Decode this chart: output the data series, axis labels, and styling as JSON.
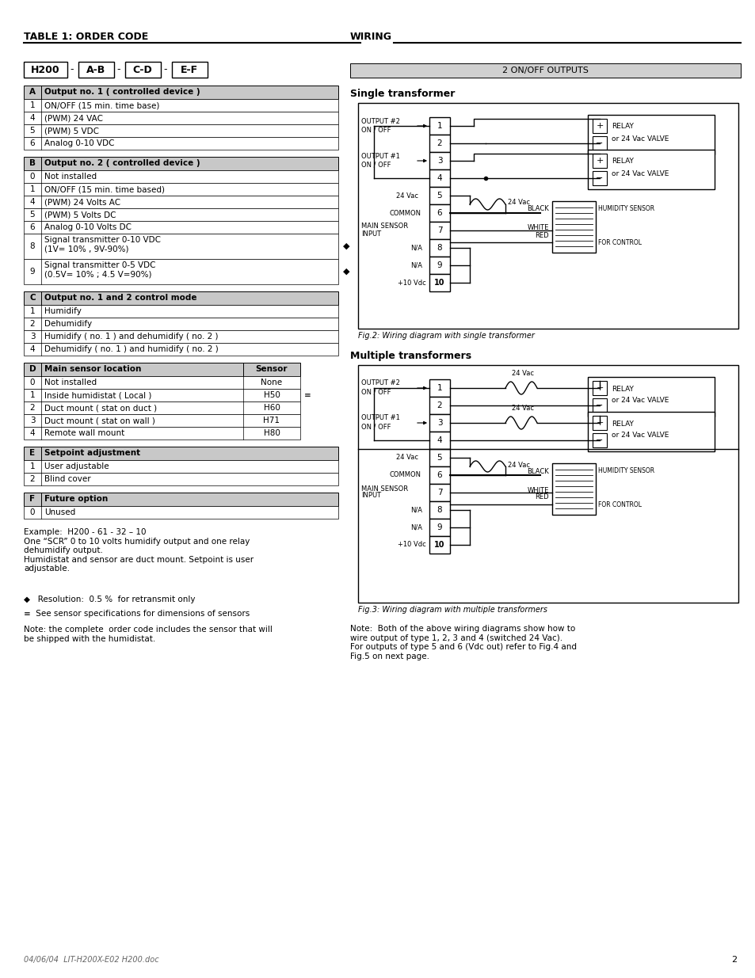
{
  "page_bg": "#ffffff",
  "title_left": "TABLE 1: ORDER CODE",
  "title_right": "WIRING",
  "order_code_boxes": [
    "H200",
    "A-B",
    "C-D",
    "E-F"
  ],
  "table_A_header": [
    "A",
    "Output no. 1 ( controlled device )"
  ],
  "table_A_rows": [
    [
      "1",
      "ON/OFF (15 min. time base)"
    ],
    [
      "4",
      "(PWM) 24 VAC"
    ],
    [
      "5",
      "(PWM) 5 VDC"
    ],
    [
      "6",
      "Analog 0-10 VDC"
    ]
  ],
  "table_B_header": [
    "B",
    "Output no. 2 ( controlled device )"
  ],
  "table_B_rows": [
    [
      "0",
      "Not installed"
    ],
    [
      "1",
      "ON/OFF (15 min. time based)"
    ],
    [
      "4",
      "(PWM) 24 Volts AC"
    ],
    [
      "5",
      "(PWM) 5 Volts DC"
    ],
    [
      "6",
      "Analog 0-10 Volts DC"
    ],
    [
      "8",
      "Signal transmitter 0-10 VDC\n(1V= 10% , 9V-90%)"
    ],
    [
      "9",
      "Signal transmitter 0-5 VDC\n(0.5V= 10% ; 4.5 V=90%)"
    ]
  ],
  "table_C_header": [
    "C",
    "Output no. 1 and 2 control mode"
  ],
  "table_C_rows": [
    [
      "1",
      "Humidify"
    ],
    [
      "2",
      "Dehumidify"
    ],
    [
      "3",
      "Humidify ( no. 1 ) and dehumidify ( no. 2 )"
    ],
    [
      "4",
      "Dehumidify ( no. 1 ) and humidify ( no. 2 )"
    ]
  ],
  "table_D_header": [
    "D",
    "Main sensor location",
    "Sensor"
  ],
  "table_D_rows": [
    [
      "0",
      "Not installed",
      "None"
    ],
    [
      "1",
      "Inside humidistat ( Local )",
      "H50"
    ],
    [
      "2",
      "Duct mount ( stat on duct )",
      "H60"
    ],
    [
      "3",
      "Duct mount ( stat on wall )",
      "H71"
    ],
    [
      "4",
      "Remote wall mount",
      "H80"
    ]
  ],
  "table_E_header": [
    "E",
    "Setpoint adjustment"
  ],
  "table_E_rows": [
    [
      "1",
      "User adjustable"
    ],
    [
      "2",
      "Blind cover"
    ]
  ],
  "table_F_header": [
    "F",
    "Future option"
  ],
  "table_F_rows": [
    [
      "0",
      "Unused"
    ]
  ],
  "example_text": "Example:  H200 - 61 - 32 – 10\nOne “SCR” 0 to 10 volts humidify output and one relay\ndehumidify output.\nHumidistat and sensor are duct mount. Setpoint is user\nadjustable.",
  "bullet1": "◆   Resolution:  0.5 %  for retransmit only",
  "bullet2": "≡  See sensor specifications for dimensions of sensors",
  "note_bottom": "Note: the complete  order code includes the sensor that will\nbe shipped with the humidistat.",
  "footer": "04/06/04  LIT-H200X-E02 H200.doc",
  "page_number": "2",
  "wiring_subtitle": "2 ON/OFF OUTPUTS",
  "single_transformer_title": "Single transformer",
  "multiple_transformer_title": "Multiple transformers",
  "fig2_caption": "Fig.2: Wiring diagram with single transformer",
  "fig3_caption": "Fig.3: Wiring diagram with multiple transformers",
  "note_wiring": "Note:  Both of the above wiring diagrams show how to\nwire output of type 1, 2, 3 and 4 (switched 24 Vac).\nFor outputs of type 5 and 6 (Vdc out) refer to Fig.4 and\nFig.5 on next page.",
  "header_bg": "#c8c8c8"
}
